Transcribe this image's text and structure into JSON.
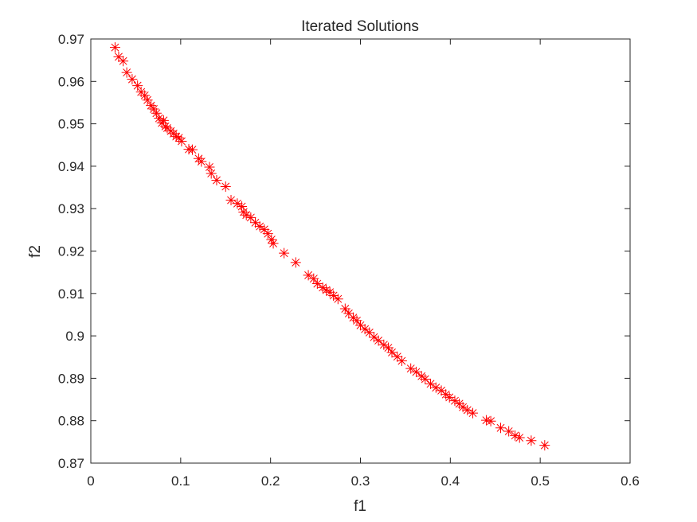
{
  "chart_data": {
    "type": "scatter",
    "title": "Iterated Solutions",
    "xlabel": "f1",
    "ylabel": "f2",
    "xlim": [
      0,
      0.6
    ],
    "ylim": [
      0.87,
      0.97
    ],
    "xticks": [
      "0",
      "0.1",
      "0.2",
      "0.3",
      "0.4",
      "0.5",
      "0.6"
    ],
    "yticks": [
      "0.87",
      "0.88",
      "0.89",
      "0.9",
      "0.91",
      "0.92",
      "0.93",
      "0.94",
      "0.95",
      "0.96",
      "0.97"
    ],
    "grid": false,
    "legend": "none",
    "marker": "asterisk",
    "marker_color": "#ff0000",
    "series": [
      {
        "x": [
          0.027,
          0.031,
          0.036,
          0.04,
          0.046,
          0.052,
          0.056,
          0.06,
          0.063,
          0.067,
          0.07,
          0.073,
          0.076,
          0.079,
          0.081,
          0.083,
          0.085,
          0.089,
          0.092,
          0.095,
          0.098,
          0.101,
          0.109,
          0.113,
          0.12,
          0.123,
          0.132,
          0.134,
          0.14,
          0.15,
          0.156,
          0.163,
          0.168,
          0.17,
          0.173,
          0.178,
          0.183,
          0.188,
          0.193,
          0.197,
          0.201,
          0.203,
          0.215,
          0.228,
          0.242,
          0.248,
          0.252,
          0.258,
          0.262,
          0.266,
          0.27,
          0.275,
          0.283,
          0.287,
          0.292,
          0.296,
          0.3,
          0.305,
          0.31,
          0.315,
          0.32,
          0.326,
          0.331,
          0.335,
          0.341,
          0.346,
          0.356,
          0.362,
          0.368,
          0.372,
          0.378,
          0.384,
          0.39,
          0.395,
          0.399,
          0.405,
          0.41,
          0.414,
          0.419,
          0.425,
          0.44,
          0.445,
          0.456,
          0.465,
          0.472,
          0.477,
          0.49,
          0.505
        ],
        "y": [
          0.968,
          0.9658,
          0.9648,
          0.9621,
          0.9605,
          0.959,
          0.9575,
          0.9567,
          0.9556,
          0.9543,
          0.9535,
          0.9525,
          0.9513,
          0.9502,
          0.9508,
          0.9494,
          0.949,
          0.9483,
          0.9477,
          0.947,
          0.9467,
          0.9459,
          0.944,
          0.9439,
          0.9418,
          0.9411,
          0.9398,
          0.9383,
          0.9367,
          0.9352,
          0.932,
          0.9312,
          0.9305,
          0.9292,
          0.9285,
          0.9279,
          0.9267,
          0.9258,
          0.9251,
          0.9241,
          0.9227,
          0.9218,
          0.9195,
          0.9173,
          0.9143,
          0.9135,
          0.9123,
          0.9114,
          0.9108,
          0.9103,
          0.9095,
          0.9087,
          0.9064,
          0.9053,
          0.9043,
          0.9036,
          0.9025,
          0.9016,
          0.9008,
          0.8997,
          0.8989,
          0.8979,
          0.8972,
          0.8961,
          0.8951,
          0.8941,
          0.8923,
          0.8915,
          0.8905,
          0.8898,
          0.8887,
          0.8878,
          0.8871,
          0.8862,
          0.8855,
          0.8847,
          0.884,
          0.8832,
          0.8825,
          0.8818,
          0.8801,
          0.8799,
          0.8783,
          0.8775,
          0.8765,
          0.876,
          0.8753,
          0.8742
        ]
      }
    ]
  }
}
